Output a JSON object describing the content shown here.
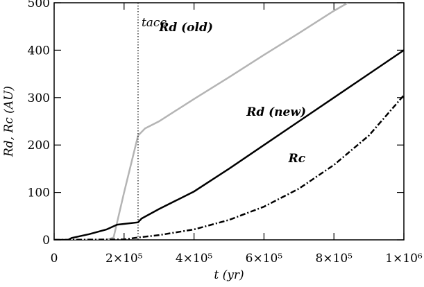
{
  "chart_data": {
    "type": "line",
    "xlabel": "t (yr)",
    "ylabel": "Rd, Rc (AU)",
    "xlim": [
      0,
      1000000
    ],
    "ylim": [
      0,
      500
    ],
    "xticks": [
      0,
      {
        "value": 200000,
        "label": "2×10⁵"
      },
      {
        "value": 400000,
        "label": "4×10⁵"
      },
      {
        "value": 600000,
        "label": "6×10⁵"
      },
      {
        "value": 800000,
        "label": "8×10⁵"
      },
      {
        "value": 1000000,
        "label": "1×10⁶"
      }
    ],
    "yticks": [
      0,
      100,
      200,
      300,
      400,
      500
    ],
    "series": [
      {
        "name": "Rd (old)",
        "color": "#b4b4b4",
        "dash": "solid",
        "x": [
          0,
          150000,
          170000,
          200000,
          240000,
          260000,
          300000,
          400000,
          500000,
          600000,
          700000,
          800000,
          840000
        ],
        "values": [
          0,
          0,
          5,
          100,
          220,
          235,
          250,
          297,
          343,
          390,
          436,
          483,
          500
        ]
      },
      {
        "name": "Rd (new)",
        "color": "#000000",
        "dash": "solid",
        "x": [
          0,
          40000,
          50000,
          100000,
          150000,
          180000,
          240000,
          250000,
          300000,
          400000,
          500000,
          600000,
          700000,
          800000,
          900000,
          1000000
        ],
        "values": [
          0,
          0,
          4,
          12,
          22,
          32,
          37,
          45,
          65,
          102,
          150,
          200,
          250,
          300,
          350,
          400
        ]
      },
      {
        "name": "Rc",
        "color": "#000000",
        "dash": "dashdot",
        "x": [
          0,
          200000,
          240000,
          300000,
          400000,
          500000,
          600000,
          700000,
          800000,
          900000,
          1000000
        ],
        "values": [
          0,
          1,
          5,
          10,
          22,
          42,
          70,
          108,
          158,
          220,
          305
        ]
      }
    ],
    "annotations": [
      {
        "text": "tacc",
        "x": 240000
      }
    ]
  }
}
